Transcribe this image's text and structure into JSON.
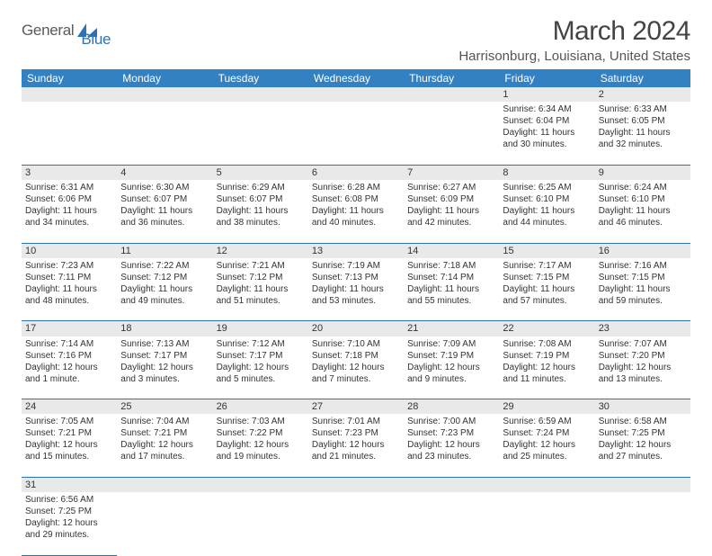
{
  "logo": {
    "text1": "General",
    "text2": "Blue"
  },
  "title": "March 2024",
  "subtitle": "Harrisonburg, Louisiana, United States",
  "columns": [
    "Sunday",
    "Monday",
    "Tuesday",
    "Wednesday",
    "Thursday",
    "Friday",
    "Saturday"
  ],
  "colors": {
    "header_bg": "#3380c2",
    "header_text": "#ffffff",
    "daynum_bg": "#e9e9e9",
    "cell_border": "#2e72b5",
    "logo_blue": "#2e72b5",
    "logo_gray": "#5a5a5a"
  },
  "weeks": [
    [
      null,
      null,
      null,
      null,
      null,
      {
        "n": "1",
        "sr": "Sunrise: 6:34 AM",
        "ss": "Sunset: 6:04 PM",
        "d1": "Daylight: 11 hours",
        "d2": "and 30 minutes."
      },
      {
        "n": "2",
        "sr": "Sunrise: 6:33 AM",
        "ss": "Sunset: 6:05 PM",
        "d1": "Daylight: 11 hours",
        "d2": "and 32 minutes."
      }
    ],
    [
      {
        "n": "3",
        "sr": "Sunrise: 6:31 AM",
        "ss": "Sunset: 6:06 PM",
        "d1": "Daylight: 11 hours",
        "d2": "and 34 minutes."
      },
      {
        "n": "4",
        "sr": "Sunrise: 6:30 AM",
        "ss": "Sunset: 6:07 PM",
        "d1": "Daylight: 11 hours",
        "d2": "and 36 minutes."
      },
      {
        "n": "5",
        "sr": "Sunrise: 6:29 AM",
        "ss": "Sunset: 6:07 PM",
        "d1": "Daylight: 11 hours",
        "d2": "and 38 minutes."
      },
      {
        "n": "6",
        "sr": "Sunrise: 6:28 AM",
        "ss": "Sunset: 6:08 PM",
        "d1": "Daylight: 11 hours",
        "d2": "and 40 minutes."
      },
      {
        "n": "7",
        "sr": "Sunrise: 6:27 AM",
        "ss": "Sunset: 6:09 PM",
        "d1": "Daylight: 11 hours",
        "d2": "and 42 minutes."
      },
      {
        "n": "8",
        "sr": "Sunrise: 6:25 AM",
        "ss": "Sunset: 6:10 PM",
        "d1": "Daylight: 11 hours",
        "d2": "and 44 minutes."
      },
      {
        "n": "9",
        "sr": "Sunrise: 6:24 AM",
        "ss": "Sunset: 6:10 PM",
        "d1": "Daylight: 11 hours",
        "d2": "and 46 minutes."
      }
    ],
    [
      {
        "n": "10",
        "sr": "Sunrise: 7:23 AM",
        "ss": "Sunset: 7:11 PM",
        "d1": "Daylight: 11 hours",
        "d2": "and 48 minutes."
      },
      {
        "n": "11",
        "sr": "Sunrise: 7:22 AM",
        "ss": "Sunset: 7:12 PM",
        "d1": "Daylight: 11 hours",
        "d2": "and 49 minutes."
      },
      {
        "n": "12",
        "sr": "Sunrise: 7:21 AM",
        "ss": "Sunset: 7:12 PM",
        "d1": "Daylight: 11 hours",
        "d2": "and 51 minutes."
      },
      {
        "n": "13",
        "sr": "Sunrise: 7:19 AM",
        "ss": "Sunset: 7:13 PM",
        "d1": "Daylight: 11 hours",
        "d2": "and 53 minutes."
      },
      {
        "n": "14",
        "sr": "Sunrise: 7:18 AM",
        "ss": "Sunset: 7:14 PM",
        "d1": "Daylight: 11 hours",
        "d2": "and 55 minutes."
      },
      {
        "n": "15",
        "sr": "Sunrise: 7:17 AM",
        "ss": "Sunset: 7:15 PM",
        "d1": "Daylight: 11 hours",
        "d2": "and 57 minutes."
      },
      {
        "n": "16",
        "sr": "Sunrise: 7:16 AM",
        "ss": "Sunset: 7:15 PM",
        "d1": "Daylight: 11 hours",
        "d2": "and 59 minutes."
      }
    ],
    [
      {
        "n": "17",
        "sr": "Sunrise: 7:14 AM",
        "ss": "Sunset: 7:16 PM",
        "d1": "Daylight: 12 hours",
        "d2": "and 1 minute."
      },
      {
        "n": "18",
        "sr": "Sunrise: 7:13 AM",
        "ss": "Sunset: 7:17 PM",
        "d1": "Daylight: 12 hours",
        "d2": "and 3 minutes."
      },
      {
        "n": "19",
        "sr": "Sunrise: 7:12 AM",
        "ss": "Sunset: 7:17 PM",
        "d1": "Daylight: 12 hours",
        "d2": "and 5 minutes."
      },
      {
        "n": "20",
        "sr": "Sunrise: 7:10 AM",
        "ss": "Sunset: 7:18 PM",
        "d1": "Daylight: 12 hours",
        "d2": "and 7 minutes."
      },
      {
        "n": "21",
        "sr": "Sunrise: 7:09 AM",
        "ss": "Sunset: 7:19 PM",
        "d1": "Daylight: 12 hours",
        "d2": "and 9 minutes."
      },
      {
        "n": "22",
        "sr": "Sunrise: 7:08 AM",
        "ss": "Sunset: 7:19 PM",
        "d1": "Daylight: 12 hours",
        "d2": "and 11 minutes."
      },
      {
        "n": "23",
        "sr": "Sunrise: 7:07 AM",
        "ss": "Sunset: 7:20 PM",
        "d1": "Daylight: 12 hours",
        "d2": "and 13 minutes."
      }
    ],
    [
      {
        "n": "24",
        "sr": "Sunrise: 7:05 AM",
        "ss": "Sunset: 7:21 PM",
        "d1": "Daylight: 12 hours",
        "d2": "and 15 minutes."
      },
      {
        "n": "25",
        "sr": "Sunrise: 7:04 AM",
        "ss": "Sunset: 7:21 PM",
        "d1": "Daylight: 12 hours",
        "d2": "and 17 minutes."
      },
      {
        "n": "26",
        "sr": "Sunrise: 7:03 AM",
        "ss": "Sunset: 7:22 PM",
        "d1": "Daylight: 12 hours",
        "d2": "and 19 minutes."
      },
      {
        "n": "27",
        "sr": "Sunrise: 7:01 AM",
        "ss": "Sunset: 7:23 PM",
        "d1": "Daylight: 12 hours",
        "d2": "and 21 minutes."
      },
      {
        "n": "28",
        "sr": "Sunrise: 7:00 AM",
        "ss": "Sunset: 7:23 PM",
        "d1": "Daylight: 12 hours",
        "d2": "and 23 minutes."
      },
      {
        "n": "29",
        "sr": "Sunrise: 6:59 AM",
        "ss": "Sunset: 7:24 PM",
        "d1": "Daylight: 12 hours",
        "d2": "and 25 minutes."
      },
      {
        "n": "30",
        "sr": "Sunrise: 6:58 AM",
        "ss": "Sunset: 7:25 PM",
        "d1": "Daylight: 12 hours",
        "d2": "and 27 minutes."
      }
    ],
    [
      {
        "n": "31",
        "sr": "Sunrise: 6:56 AM",
        "ss": "Sunset: 7:25 PM",
        "d1": "Daylight: 12 hours",
        "d2": "and 29 minutes."
      },
      null,
      null,
      null,
      null,
      null,
      null
    ]
  ]
}
